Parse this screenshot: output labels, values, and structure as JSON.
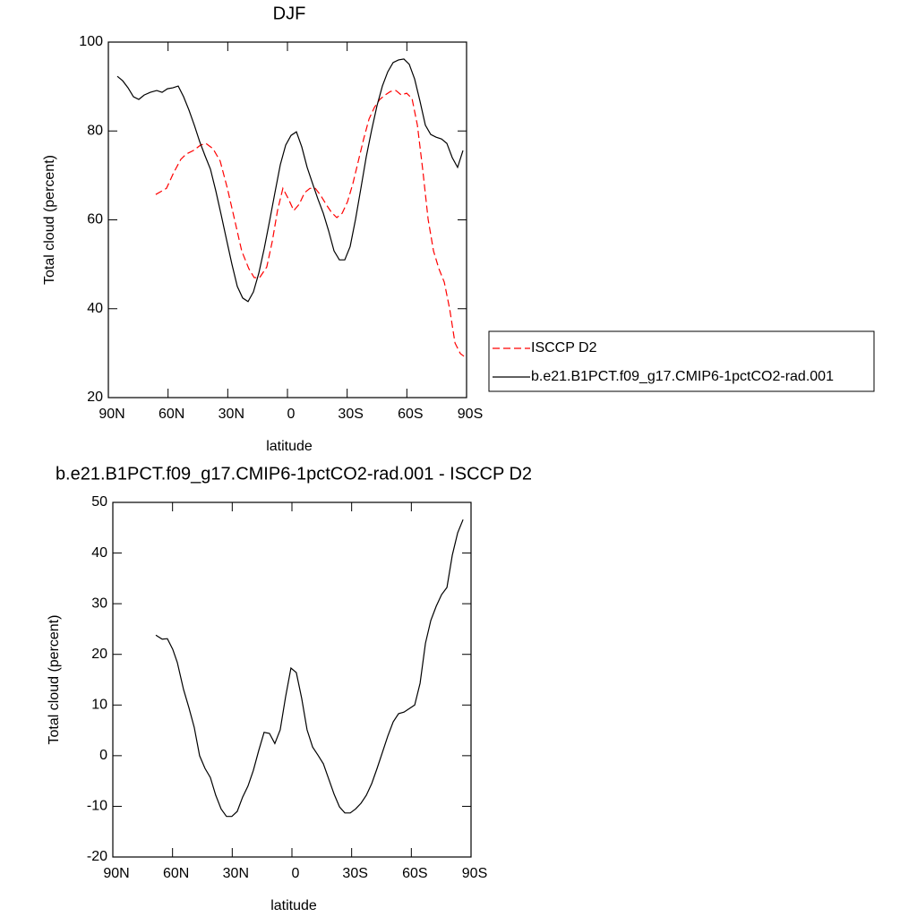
{
  "chart_data": [
    {
      "type": "line",
      "title": "DJF",
      "xlabel": "latitude",
      "ylabel": "Total cloud (percent)",
      "xlim": [
        90,
        -90
      ],
      "ylim": [
        20,
        100
      ],
      "xticks": [
        {
          "value": 90,
          "label": "90N"
        },
        {
          "value": 60,
          "label": "60N"
        },
        {
          "value": 30,
          "label": "30N"
        },
        0,
        {
          "value": -30,
          "label": "30S"
        },
        {
          "value": -60,
          "label": "60S"
        },
        {
          "value": -90,
          "label": "90S"
        }
      ],
      "yticks": [
        20,
        40,
        60,
        80,
        100
      ],
      "legend": "outside right",
      "series": [
        {
          "name": "ISCCP D2",
          "color": "#ff0000",
          "line_style": "dashed",
          "x": [
            66.2,
            60.8,
            57.2,
            53.6,
            50.9,
            47.3,
            43.7,
            41,
            37.4,
            33.8,
            30.2,
            26.6,
            23,
            19.4,
            16.7,
            14,
            10.4,
            7.7,
            5,
            2.3,
            -0.5,
            -3.2,
            -5.9,
            -8.6,
            -11.3,
            -14,
            -16.7,
            -19.4,
            -22.1,
            -24.8,
            -27.5,
            -30.2,
            -32.9,
            -35.6,
            -38.3,
            -41,
            -43.7,
            -46.4,
            -49.1,
            -51.8,
            -54.5,
            -57.2,
            -59.9,
            -62.6,
            -65.3,
            -68,
            -70.7,
            -73.4,
            -76.1,
            -78.8,
            -81.5,
            -84.2,
            -86.9,
            -88.7
          ],
          "values": [
            65.7,
            67.1,
            70.6,
            73.6,
            74.8,
            75.6,
            76.8,
            77.2,
            76,
            73.2,
            67.1,
            60.1,
            53,
            49,
            47,
            47,
            49.4,
            55,
            62.1,
            67.1,
            64.7,
            62.1,
            63.5,
            66.1,
            67.1,
            67.1,
            65.5,
            63.5,
            61.7,
            60.5,
            61.5,
            64.1,
            68.2,
            73.2,
            78.2,
            82.7,
            85.3,
            87.1,
            88.1,
            88.9,
            89.1,
            88.1,
            88.5,
            87.3,
            81.3,
            71.2,
            60.1,
            53,
            49,
            46,
            40,
            32.3,
            29.9,
            29.3
          ]
        },
        {
          "name": "b.e21.B1PCT.f09_g17.CMIP6-1pctCO2-rad.001",
          "color": "#000000",
          "line_style": "solid",
          "x": [
            85.5,
            82.8,
            80.1,
            77.4,
            74.7,
            72,
            68.9,
            65.7,
            63,
            60.3,
            57.6,
            54.9,
            52.2,
            49.5,
            46.8,
            44.1,
            41.4,
            38.7,
            36,
            33.3,
            30.6,
            27.9,
            25.2,
            22.5,
            19.8,
            17.1,
            14.4,
            11.7,
            9,
            6.3,
            3.6,
            0.9,
            -1.8,
            -4.5,
            -7.2,
            -9.9,
            -12.6,
            -15.3,
            -18,
            -20.7,
            -23.4,
            -26.1,
            -28.8,
            -31.5,
            -34.2,
            -36.9,
            -39.6,
            -42.3,
            -45,
            -47.7,
            -50.4,
            -53.1,
            -55.8,
            -58.5,
            -61.2,
            -63.9,
            -66.6,
            -69.3,
            -72,
            -74.7,
            -77.4,
            -80.1,
            -82.8,
            -85.5,
            -88.2
          ],
          "values": [
            92.3,
            91.3,
            89.7,
            87.7,
            87.1,
            88.1,
            88.7,
            89.1,
            88.7,
            89.5,
            89.7,
            90.1,
            87.7,
            84.7,
            81.3,
            77.6,
            74.4,
            71.4,
            66.5,
            61.1,
            55.5,
            50,
            45,
            42.4,
            41.6,
            43.8,
            48,
            53.5,
            59.7,
            66.1,
            72.4,
            76.8,
            79,
            79.8,
            76.4,
            71.8,
            68.2,
            64.7,
            61.5,
            57.5,
            53,
            51,
            51,
            54,
            60.1,
            67.1,
            74.2,
            80.2,
            85.7,
            90.1,
            93.3,
            95.4,
            96,
            96.2,
            95,
            91.7,
            86.7,
            81.3,
            79.2,
            78.6,
            78.2,
            77.2,
            74,
            71.8,
            75.6
          ]
        }
      ]
    },
    {
      "type": "line",
      "title": "b.e21.B1PCT.f09_g17.CMIP6-1pctCO2-rad.001 - ISCCP D2",
      "xlabel": "latitude",
      "ylabel": "Total cloud (percent)",
      "xlim": [
        90,
        -90
      ],
      "ylim": [
        -20,
        50
      ],
      "xticks": [
        {
          "value": 90,
          "label": "90N"
        },
        {
          "value": 60,
          "label": "60N"
        },
        {
          "value": 30,
          "label": "30N"
        },
        0,
        {
          "value": -30,
          "label": "30S"
        },
        {
          "value": -60,
          "label": "60S"
        },
        {
          "value": -90,
          "label": "90S"
        }
      ],
      "yticks": [
        -20,
        -10,
        0,
        10,
        20,
        30,
        40,
        50
      ],
      "series": [
        {
          "color": "#000000",
          "line_style": "solid",
          "x": [
            68.4,
            65.2,
            62.6,
            59.9,
            57.6,
            54.5,
            51.8,
            49.1,
            46.4,
            43.7,
            41,
            38.3,
            35.6,
            32.9,
            30.2,
            27.5,
            24.8,
            22.1,
            19.4,
            16.7,
            14,
            11.3,
            8.6,
            5.9,
            3.2,
            0.5,
            -2.2,
            -4.9,
            -7.6,
            -10.4,
            -13.1,
            -15.8,
            -18.5,
            -21.2,
            -23.9,
            -26.6,
            -29.3,
            -32,
            -34.7,
            -37.4,
            -40.1,
            -42.8,
            -45.5,
            -48.2,
            -50.9,
            -53.6,
            -56.3,
            -59,
            -61.7,
            -64.4,
            -67.1,
            -69.8,
            -72.5,
            -75.2,
            -77.9,
            -80.6,
            -83.3,
            -86
          ],
          "values": [
            23.8,
            23,
            23.1,
            21,
            18.4,
            13.1,
            9.5,
            5.6,
            0,
            -2.5,
            -4.3,
            -7.8,
            -10.5,
            -12,
            -12,
            -11,
            -8.2,
            -6,
            -2.9,
            1,
            4.6,
            4.4,
            2.4,
            5.1,
            11.6,
            17.3,
            16.4,
            11.3,
            5.1,
            1.7,
            0.1,
            -1.6,
            -4.6,
            -7.6,
            -10.1,
            -11.3,
            -11.3,
            -10.5,
            -9.4,
            -7.8,
            -5.5,
            -2.5,
            0.7,
            3.9,
            6.7,
            8.3,
            8.6,
            9.3,
            10,
            14.3,
            22.2,
            26.7,
            29.5,
            31.8,
            33.2,
            39.6,
            44,
            46.6
          ]
        }
      ]
    }
  ]
}
